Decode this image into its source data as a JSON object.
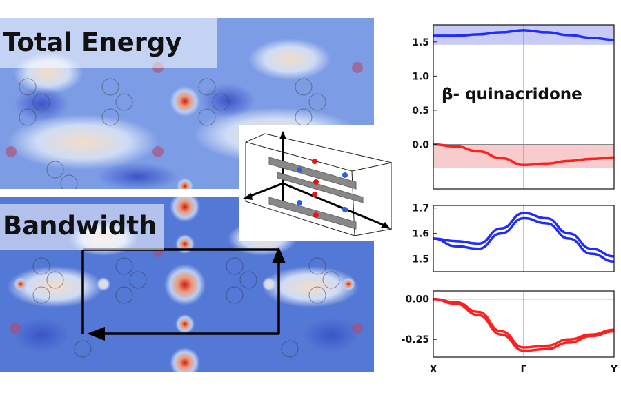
{
  "maps": {
    "top_title": "Total Energy",
    "bottom_title": "Bandwidth"
  },
  "chart_data": [
    {
      "type": "line",
      "title": "β- quinacridone",
      "ylim": [
        -0.65,
        1.75
      ],
      "yticks": [
        "1.5",
        "1.0",
        "0.5",
        "0.0"
      ],
      "ytick_values": [
        1.5,
        1.0,
        0.5,
        0.0
      ],
      "xticks": [
        "X",
        "Γ",
        "Y"
      ],
      "x": [
        0,
        0.25,
        0.5,
        0.75,
        1.0,
        1.25,
        1.5,
        1.75,
        2.0
      ],
      "series": [
        {
          "values": [
            1.59,
            1.59,
            1.61,
            1.64,
            1.67,
            1.64,
            1.6,
            1.56,
            1.53
          ],
          "color": "#1f2bff"
        },
        {
          "values": [
            0.0,
            -0.03,
            -0.1,
            -0.2,
            -0.3,
            -0.28,
            -0.24,
            -0.21,
            -0.19
          ],
          "color": "#ff1f1f"
        }
      ],
      "bands": [
        {
          "from": 1.46,
          "to": 1.75,
          "color": "#c8cbf5"
        },
        {
          "from": -0.34,
          "to": 0.0,
          "color": "#f8cccc"
        }
      ],
      "grid": false
    },
    {
      "type": "line",
      "ylim": [
        1.45,
        1.71
      ],
      "yticks": [
        "1.7",
        "1.6",
        "1.5"
      ],
      "ytick_values": [
        1.7,
        1.6,
        1.5
      ],
      "x": [
        0,
        0.25,
        0.5,
        0.75,
        1.0,
        1.25,
        1.5,
        1.75,
        2.0
      ],
      "series": [
        {
          "values": [
            1.58,
            1.57,
            1.56,
            1.62,
            1.68,
            1.66,
            1.6,
            1.54,
            1.51
          ],
          "color": "#1f2bff"
        },
        {
          "values": [
            1.58,
            1.55,
            1.54,
            1.6,
            1.66,
            1.64,
            1.58,
            1.52,
            1.49
          ],
          "color": "#1f2bff"
        }
      ],
      "grid": false
    },
    {
      "type": "line",
      "ylim": [
        -0.36,
        0.05
      ],
      "yticks": [
        "0.00",
        "-0.25"
      ],
      "ytick_values": [
        0.0,
        -0.25
      ],
      "xticks": [
        "X",
        "Γ",
        "Y"
      ],
      "x": [
        0,
        0.25,
        0.5,
        0.75,
        1.0,
        1.25,
        1.5,
        1.75,
        2.0
      ],
      "series": [
        {
          "values": [
            0.0,
            -0.02,
            -0.08,
            -0.2,
            -0.3,
            -0.29,
            -0.25,
            -0.22,
            -0.19
          ],
          "color": "#ff1f1f"
        },
        {
          "values": [
            0.0,
            -0.03,
            -0.1,
            -0.22,
            -0.32,
            -0.31,
            -0.27,
            -0.23,
            -0.2
          ],
          "color": "#ff1f1f"
        }
      ],
      "grid": false
    }
  ]
}
